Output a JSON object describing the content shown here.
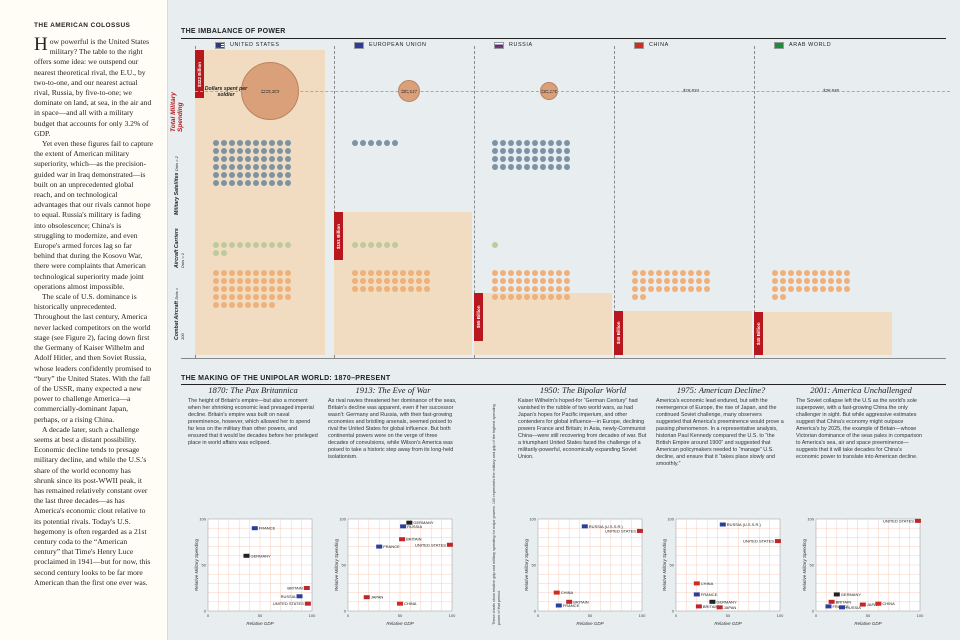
{
  "sidebar": {
    "title": "THE AMERICAN COLOSSUS",
    "paragraphs": [
      "How powerful is the United States military? The table to the right offers some idea: we outspend our nearest theoretical rival, the E.U., by two-to-one, and our nearest actual rival, Russia, by five-to-one; we dominate on land, at sea, in the air and in space—and all with a military budget that accounts for only 3.2% of GDP.",
      "Yet even these figures fail to capture the extent of American military superiority, which—as the precision-guided war in Iraq demonstrated—is built on an unprecedented global reach, and on technological advantages that our rivals cannot hope to equal. Russia's military is fading into obsolescence; China's is struggling to modernize, and even Europe's armed forces lag so far behind that during the Kosovo War, there were complaints that American technological superiority made joint operations almost impossible.",
      "The scale of U.S. dominance is historically unprecedented. Throughout the last century, America never lacked competitors on the world stage (see Figure 2), facing down first the Germany of Kaiser Wilhelm and Adolf Hitler, and then Soviet Russia, whose leaders confidently promised to “bury” the United States. With the fall of the USSR, many expected a new power to challenge America—a commercially-dominant Japan, perhaps, or a rising China.",
      "A decade later, such a challenge seems at best a distant possibility. Economic decline tends to presage military decline, and while the U.S.'s share of the world economy has shrunk since its post-WWII peak, it has remained relatively constant over the last three decades—as has America's economic clout relative to its potential rivals. Today's U.S. hegemony is often regarded as a 21st century coda to the “American century” that Time's Henry Luce proclaimed in 1941—but for now, this second century looks to be far more American than the first one ever was."
    ]
  },
  "imbalance": {
    "title": "THE IMBALANCE OF POWER",
    "total_spending_label": "Total Military Spending",
    "dollars_per_soldier_label": "Dollars spent per soldier",
    "rows": {
      "satellites": {
        "label": "Military Satellites",
        "sub": "Dots = 2"
      },
      "carriers": {
        "label": "Aircraft Carriers",
        "sub": "Dots = 1"
      },
      "aircraft": {
        "label": "Combat Aircraft",
        "sub": "Dots = 100"
      }
    },
    "columns": [
      {
        "name": "UNITED STATES",
        "flag": "us",
        "spending": "$322 Billion",
        "per_soldier": "$235,889",
        "satellites": 60,
        "carriers": 12,
        "aircraft": 48
      },
      {
        "name": "EUROPEAN UNION",
        "flag": "eu",
        "spending": "$151 Billion",
        "per_soldier": "$85,647",
        "satellites": 6,
        "carriers": 6,
        "aircraft": 30
      },
      {
        "name": "RUSSIA",
        "flag": "ru",
        "spending": "$65 Billion",
        "per_soldier": "$65,176",
        "satellites": 40,
        "carriers": 1,
        "aircraft": 40
      },
      {
        "name": "CHINA",
        "flag": "cn",
        "spending": "$46 Billion",
        "per_soldier": "$18,834",
        "satellites": 0,
        "carriers": 0,
        "aircraft": 32
      },
      {
        "name": "ARAB WORLD",
        "flag": "ar",
        "spending": "$45 Billion",
        "per_soldier": "$28,848",
        "satellites": 0,
        "carriers": 0,
        "aircraft": 32
      }
    ]
  },
  "making": {
    "title": "THE MAKING OF THE UNIPOLAR WORLD: 1870–PRESENT",
    "side_note": "These charts show relative gdp and military spending for major powers. 100 represents the military and gdp of the highest spending power of that period.",
    "eras": [
      {
        "title": "1870: The Pax Britannica",
        "text": "The height of Britain's empire—but also a moment when her shrinking economic lead presaged imperial decline. Britain's empire was built on naval preeminence, however, which allowed her to spend far less on the military than other powers, and ensured that it would be decades before her privileged place in world affairs was eclipsed.",
        "points": [
          {
            "label": "FRANCE",
            "flag": "fr",
            "gdp": 45,
            "mil": 90
          },
          {
            "label": "GERMANY",
            "flag": "de",
            "gdp": 37,
            "mil": 60
          },
          {
            "label": "BRITAIN",
            "flag": "gb",
            "gdp": 95,
            "mil": 25
          },
          {
            "label": "RUSSIA",
            "flag": "ru",
            "gdp": 88,
            "mil": 16
          },
          {
            "label": "UNITED STATES",
            "flag": "us",
            "gdp": 96,
            "mil": 8
          }
        ]
      },
      {
        "title": "1913: The Eve of War",
        "text": "As rival navies threatened her dominance of the seas, Britain's decline was apparent, even if her successor wasn't: Germany and Russia, with their fast-growing economies and bristling arsenals, seemed poised to rival the United States for global influence. But both continental powers were on the verge of three decades of convulsions, while Wilson's America was poised to take a historic step away from its long-held isolationism.",
        "points": [
          {
            "label": "RUSSIA",
            "flag": "ru",
            "gdp": 53,
            "mil": 92
          },
          {
            "label": "GERMANY",
            "flag": "de",
            "gdp": 59,
            "mil": 96
          },
          {
            "label": "BRITAIN",
            "flag": "gb",
            "gdp": 52,
            "mil": 78
          },
          {
            "label": "FRANCE",
            "flag": "fr",
            "gdp": 30,
            "mil": 70
          },
          {
            "label": "UNITED STATES",
            "flag": "us",
            "gdp": 98,
            "mil": 72
          },
          {
            "label": "JAPAN",
            "flag": "jp",
            "gdp": 18,
            "mil": 15
          },
          {
            "label": "CHINA",
            "flag": "cn",
            "gdp": 50,
            "mil": 8
          }
        ]
      },
      {
        "title": "1950: The Bipolar World",
        "text": "Kaiser Wilhelm's hoped-for “German Century” had vanished in the rubble of two world wars, as had Japan's hopes for Pacific imperium, and other contenders for global influence—in Europe, declining powers France and Britain; in Asia, newly-Communist China—were still recovering from decades of war. But a triumphant United States faced the challenge of a militarily-powerful, economically expanding Soviet Union.",
        "points": [
          {
            "label": "RUSSIA (U.S.S.R.)",
            "flag": "ru",
            "gdp": 45,
            "mil": 92
          },
          {
            "label": "UNITED STATES",
            "flag": "us",
            "gdp": 98,
            "mil": 87
          },
          {
            "label": "CHINA",
            "flag": "cn",
            "gdp": 18,
            "mil": 20
          },
          {
            "label": "BRITAIN",
            "flag": "gb",
            "gdp": 30,
            "mil": 10
          },
          {
            "label": "FRANCE",
            "flag": "fr",
            "gdp": 20,
            "mil": 6
          }
        ]
      },
      {
        "title": "1975: American Decline?",
        "text": "America's economic lead endured, but with the reemergence of Europe, the rise of Japan, and the continued Soviet challenge, many observers suggested that America's preeminence would prove a passing phenomenon. In a representative analysis, historian Paul Kennedy compared the U.S. to “the British Empire around 1900” and suggested that American policymakers needed to “manage” U.S. decline, and ensure that it “takes place slowly and smoothly.”",
        "points": [
          {
            "label": "RUSSIA (U.S.S.R.)",
            "flag": "ru",
            "gdp": 45,
            "mil": 94
          },
          {
            "label": "UNITED STATES",
            "flag": "us",
            "gdp": 98,
            "mil": 76
          },
          {
            "label": "CHINA",
            "flag": "cn",
            "gdp": 20,
            "mil": 30
          },
          {
            "label": "FRANCE",
            "flag": "fr",
            "gdp": 20,
            "mil": 18
          },
          {
            "label": "GERMANY",
            "flag": "de",
            "gdp": 35,
            "mil": 10
          },
          {
            "label": "BRITAIN",
            "flag": "gb",
            "gdp": 22,
            "mil": 5
          },
          {
            "label": "JAPAN",
            "flag": "jp",
            "gdp": 42,
            "mil": 4
          }
        ]
      },
      {
        "title": "2001: America Unchallenged",
        "text": "The Soviet collapse left the U.S as the world's sole superpower, with a fast-growing China the only challenger in sight. But while aggressive estimates suggest that China's economy might outpace America's by 2025, the example of Britain—whose Victorian dominance of the seas pales in comparison to America's sea, air and space preeminence—suggests that it will take decades for China's economic power to translate into American decline.",
        "points": [
          {
            "label": "UNITED STATES",
            "flag": "us",
            "gdp": 98,
            "mil": 98
          },
          {
            "label": "GERMANY",
            "flag": "de",
            "gdp": 20,
            "mil": 18
          },
          {
            "label": "BRITAIN",
            "flag": "gb",
            "gdp": 15,
            "mil": 10
          },
          {
            "label": "FRANCE",
            "flag": "fr",
            "gdp": 12,
            "mil": 5
          },
          {
            "label": "RUSSIA",
            "flag": "ru",
            "gdp": 25,
            "mil": 4
          },
          {
            "label": "JAPAN",
            "flag": "jp",
            "gdp": 45,
            "mil": 7
          },
          {
            "label": "CHINA",
            "flag": "cn",
            "gdp": 60,
            "mil": 8
          }
        ]
      }
    ],
    "x_axis_label": "Relative GDP",
    "y_axis_label": "Relative Military Spending",
    "ticks": [
      "0",
      "50",
      "100"
    ],
    "flag_colors": {
      "us": "#c0252a",
      "ru": "#2a3f9c",
      "cn": "#d52b1e",
      "fr": "#2a3f9c",
      "de": "#222222",
      "gb": "#c0252a",
      "jp": "#c0252a"
    }
  }
}
